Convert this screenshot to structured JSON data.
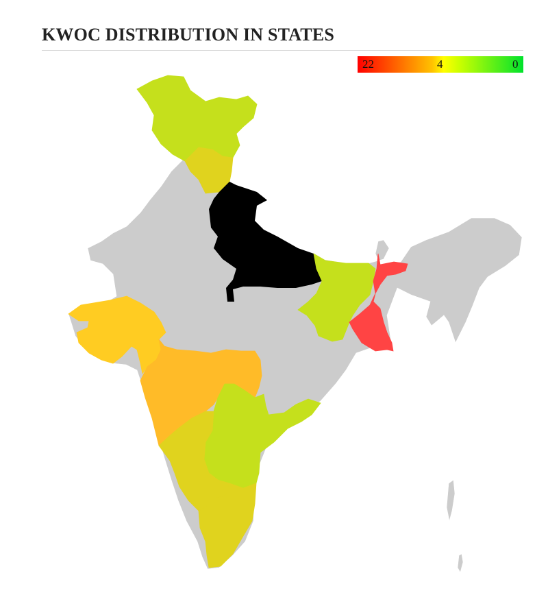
{
  "title": "KWOC DISTRIBUTION IN STATES",
  "legend": {
    "labels": [
      "22",
      "4",
      "0"
    ],
    "colors": {
      "high": "#ff0000",
      "mid": "#ffc200",
      "low": "#00e22c"
    }
  },
  "chart_data": {
    "type": "choropleth",
    "scale": {
      "max": 22,
      "mid": 4,
      "min": 0
    },
    "no_data_color": "#cccccc",
    "regions": [
      {
        "id": "jammu-kashmir",
        "color": "#c5e01c"
      },
      {
        "id": "himachal-pradesh",
        "color": "#e0d31e"
      },
      {
        "id": "uttarakhand-uttar-pradesh",
        "color": "#c5e01c"
      },
      {
        "id": "bihar-jharkhand",
        "color": "#c5e01c"
      },
      {
        "id": "west-bengal",
        "color": "#ff4444"
      },
      {
        "id": "gujarat",
        "color": "#ffcc22"
      },
      {
        "id": "maharashtra",
        "color": "#ffbb28"
      },
      {
        "id": "telangana-andhra-pradesh",
        "color": "#c5e01c"
      },
      {
        "id": "karnataka",
        "color": "#e0d31e"
      },
      {
        "id": "tamil-nadu",
        "color": "#e0d31e"
      }
    ]
  }
}
